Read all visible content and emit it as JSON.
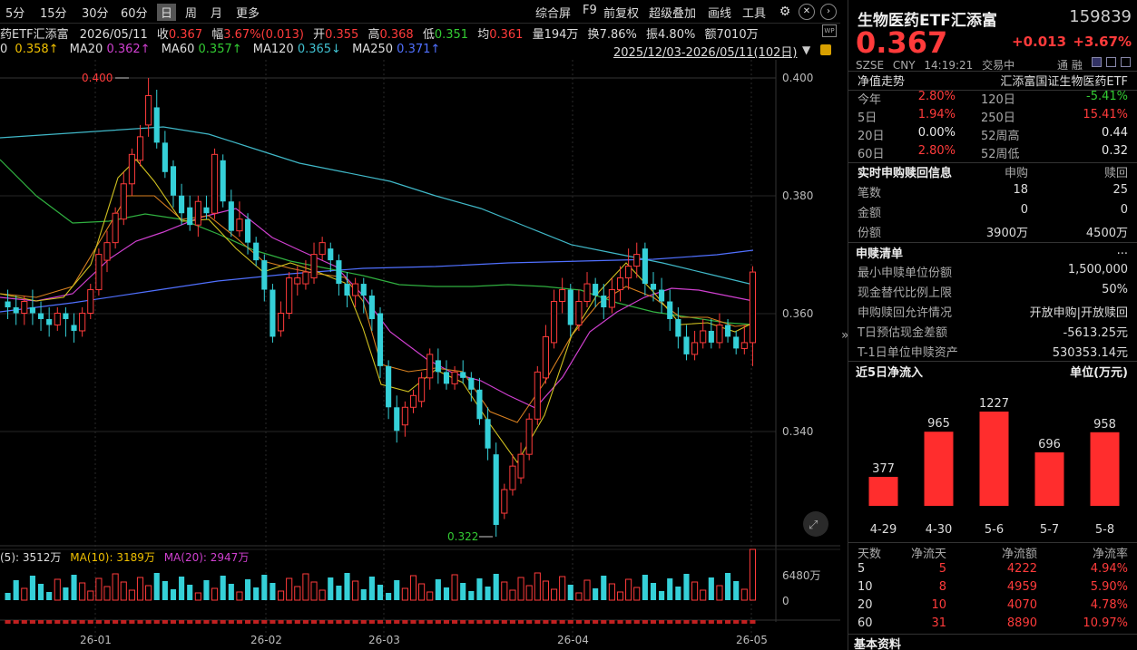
{
  "toolbar": {
    "periods": [
      "5分",
      "15分",
      "30分",
      "60分",
      "日",
      "周",
      "月",
      "更多"
    ],
    "active_period": "日",
    "right_items": [
      "综合屏",
      "F9",
      "前复权",
      "超级叠加",
      "画线",
      "工具"
    ]
  },
  "info": {
    "name_short": "药ETF汇添富",
    "date": "2026/05/11",
    "close_label": "收",
    "close": "0.367",
    "range_label": "幅",
    "range": "3.67%(0.013)",
    "open_label": "开",
    "open": "0.355",
    "high_label": "高",
    "high": "0.368",
    "low_label": "低",
    "low": "0.351",
    "avg_label": "均",
    "avg": "0.361",
    "vol_label": "量",
    "vol": "194万",
    "turnover_label": "换",
    "turnover": "7.86%",
    "amp_label": "振",
    "amp": "4.80%",
    "amount_label": "额",
    "amount": "7010万"
  },
  "ma": {
    "ma5_label": "0",
    "ma5": "0.358↑",
    "ma20_label": "MA20",
    "ma20": "0.362↑",
    "ma60_label": "MA60",
    "ma60": "0.357↑",
    "ma120_label": "MA120",
    "ma120": "0.365↓",
    "ma250_label": "MA250",
    "ma250": "0.371↑",
    "range_text": "2025/12/03-2026/05/11(102日)"
  },
  "chart": {
    "y_ticks": [
      "0.400",
      "0.380",
      "0.360",
      "0.340"
    ],
    "high_marker": "0.400",
    "low_marker": "0.322",
    "x_ticks": [
      "26-01",
      "26-02",
      "26-03",
      "26-04",
      "26-05"
    ],
    "vol_header": {
      "v5_label": "(5):",
      "v5": "3512万",
      "v10_label": "MA(10):",
      "v10": "3189万",
      "v20_label": "MA(20):",
      "v20": "2947万"
    },
    "vol_ticks": [
      "6480万",
      "0"
    ]
  },
  "panel": {
    "title": "生物医药ETF汇添富",
    "code": "159839",
    "price": "0.367",
    "change": "+0.013",
    "change_pct": "+3.67%",
    "market": "SZSE",
    "currency": "CNY",
    "time": "14:19:21",
    "status": "交易中",
    "margin": "通 融",
    "nav_label": "净值走势",
    "nav_fund": "汇添富国证生物医药ETF",
    "perf": [
      {
        "l1": "今年",
        "v1": "2.80%",
        "c1": "red",
        "l2": "120日",
        "v2": "-5.41%",
        "c2": "green"
      },
      {
        "l1": "5日",
        "v1": "1.94%",
        "c1": "red",
        "l2": "250日",
        "v2": "15.41%",
        "c2": "red"
      },
      {
        "l1": "20日",
        "v1": "0.00%",
        "c1": "white",
        "l2": "52周高",
        "v2": "0.44",
        "c2": "white"
      },
      {
        "l1": "60日",
        "v1": "2.80%",
        "c1": "red",
        "l2": "52周低",
        "v2": "0.32",
        "c2": "white"
      }
    ],
    "sub_title": "实时申购赎回信息",
    "sub_col1": "申购",
    "sub_col2": "赎回",
    "sub_rows": [
      {
        "label": "笔数",
        "a": "18",
        "b": "25"
      },
      {
        "label": "金额",
        "a": "0",
        "b": "0"
      },
      {
        "label": "份额",
        "a": "3900万",
        "b": "4500万"
      }
    ],
    "list_title": "申赎清单",
    "list_more": "...",
    "list_rows": [
      {
        "label": "最小申赎单位份额",
        "value": "1,500,000"
      },
      {
        "label": "现金替代比例上限",
        "value": "50%"
      },
      {
        "label": "申购赎回允许情况",
        "value": "开放申购|开放赎回"
      },
      {
        "label": "T日预估现金差额",
        "value": "-5613.25元"
      },
      {
        "label": "T-1日单位申赎资产",
        "value": "530353.14元"
      }
    ],
    "flow_title": "近5日净流入",
    "flow_unit": "单位(万元)",
    "flow_table_head": [
      "天数",
      "净流天",
      "净流额",
      "净流率"
    ],
    "flow_table": [
      {
        "days": "5",
        "n": "5",
        "amt": "4222",
        "rate": "4.94%"
      },
      {
        "days": "10",
        "n": "8",
        "amt": "4959",
        "rate": "5.90%"
      },
      {
        "days": "20",
        "n": "10",
        "amt": "4070",
        "rate": "4.78%"
      },
      {
        "days": "60",
        "n": "31",
        "amt": "8890",
        "rate": "10.97%"
      }
    ],
    "footer": "基本资料"
  },
  "chart_data": {
    "type": "bar",
    "title": "近5日净流入",
    "ylabel": "单位(万元)",
    "categories": [
      "4-29",
      "4-30",
      "5-6",
      "5-7",
      "5-8"
    ],
    "values": [
      377,
      965,
      1227,
      696,
      958
    ],
    "ylim": [
      0,
      1227
    ],
    "color": "#ff2d2d"
  }
}
